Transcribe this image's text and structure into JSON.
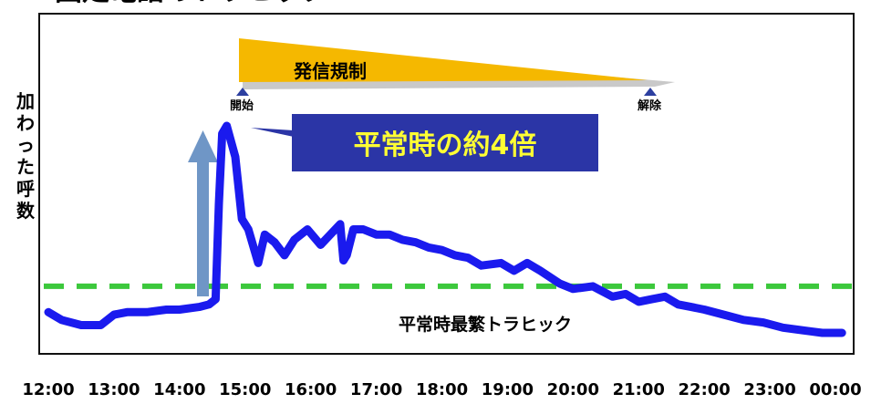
{
  "title": "固定電話のトラヒック",
  "colors": {
    "line": "#1a1aee",
    "baseline": "#3cc83c",
    "callout_box": "#2b35a6",
    "callout_text": "#ffff33",
    "arrow": "#6f96c6",
    "regulation_band": "#f5b800",
    "regulation_shadow": "#c9c9c9",
    "marker": "#2c3fa0"
  },
  "regulation": {
    "label": "発信規制",
    "start_label": "開始",
    "end_label": "解除"
  },
  "callout": {
    "text": "平常時の約4倍"
  },
  "baseline_label": "平常時最繁トラヒック",
  "chart_data": {
    "type": "line",
    "title": "固定電話のトラヒック",
    "xlabel": "",
    "ylabel": "加わった呼数",
    "xlim": [
      12,
      24.1
    ],
    "ylim": [
      0,
      100
    ],
    "grid": false,
    "ticks": [
      "12:00",
      "13:00",
      "14:00",
      "15:00",
      "16:00",
      "17:00",
      "18:00",
      "19:00",
      "20:00",
      "21:00",
      "22:00",
      "23:00",
      "00:00"
    ],
    "baseline": 18,
    "annotations": [
      "発信規制",
      "開始",
      "解除",
      "平常時の約4倍",
      "平常時最繁トラヒック"
    ],
    "series": [
      {
        "x": [
          12.0,
          12.2,
          12.5,
          12.8,
          13.0,
          13.2,
          13.5,
          13.8,
          14.0,
          14.3,
          14.45,
          14.55,
          14.6,
          14.65,
          14.72,
          14.85,
          14.95,
          15.05,
          15.2,
          15.3,
          15.45,
          15.6,
          15.75,
          15.95,
          16.15,
          16.3,
          16.45,
          16.5,
          16.55,
          16.65,
          16.8,
          17.0,
          17.2,
          17.4,
          17.6,
          17.8,
          18.0,
          18.2,
          18.4,
          18.6,
          18.9,
          19.1,
          19.3,
          19.5,
          19.8,
          20.0,
          20.3,
          20.6,
          20.8,
          21.0,
          21.2,
          21.4,
          21.6,
          21.8,
          22.0,
          22.3,
          22.6,
          22.9,
          23.2,
          23.5,
          23.8,
          24.1
        ],
        "y": [
          8,
          5,
          3,
          3,
          7,
          8,
          8,
          9,
          9,
          10,
          11,
          13,
          50,
          77,
          80,
          68,
          44,
          40,
          27,
          38,
          35,
          30,
          36,
          40,
          34,
          38,
          42,
          28,
          30,
          40,
          40,
          38,
          38,
          36,
          35,
          33,
          32,
          30,
          29,
          26,
          27,
          24,
          27,
          24,
          19,
          17,
          18,
          14,
          15,
          12,
          13,
          14,
          11,
          10,
          9,
          7,
          5,
          4,
          2,
          1,
          0,
          0
        ]
      }
    ]
  }
}
